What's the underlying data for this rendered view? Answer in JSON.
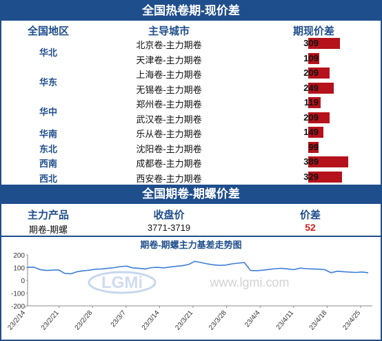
{
  "top_table": {
    "title": "全国热卷期-现价差",
    "headers": {
      "region": "全国地区",
      "city": "主导城市",
      "spread": "期现价差"
    },
    "rows": [
      {
        "region": "华北",
        "city": "北京卷-主力期卷",
        "value": 309
      },
      {
        "region": "",
        "city": "天津卷-主力期卷",
        "value": 109
      },
      {
        "region": "华东",
        "city": "上海卷-主力期卷",
        "value": 209
      },
      {
        "region": "",
        "city": "无锡卷-主力期卷",
        "value": 249
      },
      {
        "region": "华中",
        "city": "郑州卷-主力期卷",
        "value": 119
      },
      {
        "region": "",
        "city": "武汉卷-主力期卷",
        "value": 209
      },
      {
        "region": "华南",
        "city": "乐从卷-主力期卷",
        "value": 149
      },
      {
        "region": "东北",
        "city": "沈阳卷-主力期卷",
        "value": 99
      },
      {
        "region": "西南",
        "city": "成都卷-主力期卷",
        "value": 389
      },
      {
        "region": "西北",
        "city": "西安卷-主力期卷",
        "value": 329
      }
    ],
    "bar_color": "#b5121b"
  },
  "bottom_table": {
    "title": "全国期卷-期螺价差",
    "headers": {
      "product": "主力产品",
      "close": "收盘价",
      "spread": "价差"
    },
    "row": {
      "product": "期卷-期螺",
      "close": "3771-3719",
      "spread": "52"
    },
    "spread_color": "#d11b1b"
  },
  "chart_data": {
    "type": "line",
    "title": "期卷-期螺主力基差走势图",
    "watermark": "www.lgmi.com",
    "logo_text": "LGMi",
    "ylim": [
      -200,
      200
    ],
    "yticks": [
      -200,
      -100,
      0,
      100,
      200
    ],
    "xticks": [
      "23/2/14",
      "23/2/21",
      "23/2/28",
      "23/3/7",
      "23/3/14",
      "23/3/21",
      "23/3/28",
      "23/4/4",
      "23/4/11",
      "23/4/18",
      "23/4/25"
    ],
    "series": [
      {
        "color": "#3b7dd8",
        "values": [
          102,
          104,
          85,
          78,
          80,
          82,
          55,
          52,
          68,
          75,
          80,
          88,
          90,
          95,
          100,
          108,
          112,
          98,
          95,
          90,
          100,
          102,
          98,
          105,
          110,
          115,
          125,
          150,
          140,
          130,
          122,
          118,
          120,
          130,
          135,
          140,
          78,
          76,
          80,
          86,
          92,
          95,
          90,
          84,
          96,
          92,
          90,
          88,
          84,
          60,
          72,
          68,
          65,
          62,
          66,
          60
        ]
      }
    ]
  }
}
